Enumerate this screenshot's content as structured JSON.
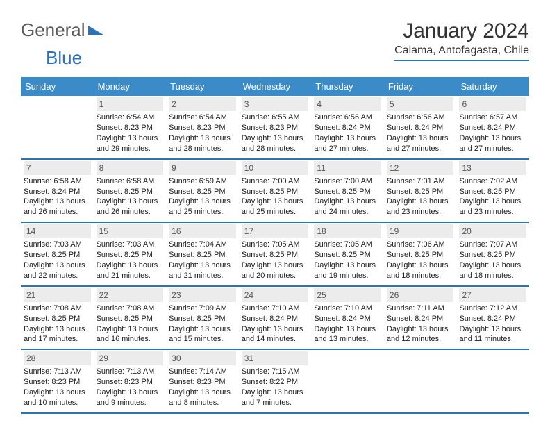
{
  "logo": {
    "text1": "General",
    "text2": "Blue",
    "tri_color": "#2a73b8",
    "text1_color": "#5a5a5a"
  },
  "title": "January 2024",
  "location": "Calama, Antofagasta, Chile",
  "header_rule_color": "#2a73b8",
  "dayhead_bg": "#3b8bc9",
  "daynum_bg": "#ececec",
  "day_names": [
    "Sunday",
    "Monday",
    "Tuesday",
    "Wednesday",
    "Thursday",
    "Friday",
    "Saturday"
  ],
  "weeks": [
    [
      {
        "n": "",
        "sr": "",
        "ss": "",
        "dl": ""
      },
      {
        "n": "1",
        "sr": "Sunrise: 6:54 AM",
        "ss": "Sunset: 8:23 PM",
        "dl": "Daylight: 13 hours and 29 minutes."
      },
      {
        "n": "2",
        "sr": "Sunrise: 6:54 AM",
        "ss": "Sunset: 8:23 PM",
        "dl": "Daylight: 13 hours and 28 minutes."
      },
      {
        "n": "3",
        "sr": "Sunrise: 6:55 AM",
        "ss": "Sunset: 8:23 PM",
        "dl": "Daylight: 13 hours and 28 minutes."
      },
      {
        "n": "4",
        "sr": "Sunrise: 6:56 AM",
        "ss": "Sunset: 8:24 PM",
        "dl": "Daylight: 13 hours and 27 minutes."
      },
      {
        "n": "5",
        "sr": "Sunrise: 6:56 AM",
        "ss": "Sunset: 8:24 PM",
        "dl": "Daylight: 13 hours and 27 minutes."
      },
      {
        "n": "6",
        "sr": "Sunrise: 6:57 AM",
        "ss": "Sunset: 8:24 PM",
        "dl": "Daylight: 13 hours and 27 minutes."
      }
    ],
    [
      {
        "n": "7",
        "sr": "Sunrise: 6:58 AM",
        "ss": "Sunset: 8:24 PM",
        "dl": "Daylight: 13 hours and 26 minutes."
      },
      {
        "n": "8",
        "sr": "Sunrise: 6:58 AM",
        "ss": "Sunset: 8:25 PM",
        "dl": "Daylight: 13 hours and 26 minutes."
      },
      {
        "n": "9",
        "sr": "Sunrise: 6:59 AM",
        "ss": "Sunset: 8:25 PM",
        "dl": "Daylight: 13 hours and 25 minutes."
      },
      {
        "n": "10",
        "sr": "Sunrise: 7:00 AM",
        "ss": "Sunset: 8:25 PM",
        "dl": "Daylight: 13 hours and 25 minutes."
      },
      {
        "n": "11",
        "sr": "Sunrise: 7:00 AM",
        "ss": "Sunset: 8:25 PM",
        "dl": "Daylight: 13 hours and 24 minutes."
      },
      {
        "n": "12",
        "sr": "Sunrise: 7:01 AM",
        "ss": "Sunset: 8:25 PM",
        "dl": "Daylight: 13 hours and 23 minutes."
      },
      {
        "n": "13",
        "sr": "Sunrise: 7:02 AM",
        "ss": "Sunset: 8:25 PM",
        "dl": "Daylight: 13 hours and 23 minutes."
      }
    ],
    [
      {
        "n": "14",
        "sr": "Sunrise: 7:03 AM",
        "ss": "Sunset: 8:25 PM",
        "dl": "Daylight: 13 hours and 22 minutes."
      },
      {
        "n": "15",
        "sr": "Sunrise: 7:03 AM",
        "ss": "Sunset: 8:25 PM",
        "dl": "Daylight: 13 hours and 21 minutes."
      },
      {
        "n": "16",
        "sr": "Sunrise: 7:04 AM",
        "ss": "Sunset: 8:25 PM",
        "dl": "Daylight: 13 hours and 21 minutes."
      },
      {
        "n": "17",
        "sr": "Sunrise: 7:05 AM",
        "ss": "Sunset: 8:25 PM",
        "dl": "Daylight: 13 hours and 20 minutes."
      },
      {
        "n": "18",
        "sr": "Sunrise: 7:05 AM",
        "ss": "Sunset: 8:25 PM",
        "dl": "Daylight: 13 hours and 19 minutes."
      },
      {
        "n": "19",
        "sr": "Sunrise: 7:06 AM",
        "ss": "Sunset: 8:25 PM",
        "dl": "Daylight: 13 hours and 18 minutes."
      },
      {
        "n": "20",
        "sr": "Sunrise: 7:07 AM",
        "ss": "Sunset: 8:25 PM",
        "dl": "Daylight: 13 hours and 18 minutes."
      }
    ],
    [
      {
        "n": "21",
        "sr": "Sunrise: 7:08 AM",
        "ss": "Sunset: 8:25 PM",
        "dl": "Daylight: 13 hours and 17 minutes."
      },
      {
        "n": "22",
        "sr": "Sunrise: 7:08 AM",
        "ss": "Sunset: 8:25 PM",
        "dl": "Daylight: 13 hours and 16 minutes."
      },
      {
        "n": "23",
        "sr": "Sunrise: 7:09 AM",
        "ss": "Sunset: 8:25 PM",
        "dl": "Daylight: 13 hours and 15 minutes."
      },
      {
        "n": "24",
        "sr": "Sunrise: 7:10 AM",
        "ss": "Sunset: 8:24 PM",
        "dl": "Daylight: 13 hours and 14 minutes."
      },
      {
        "n": "25",
        "sr": "Sunrise: 7:10 AM",
        "ss": "Sunset: 8:24 PM",
        "dl": "Daylight: 13 hours and 13 minutes."
      },
      {
        "n": "26",
        "sr": "Sunrise: 7:11 AM",
        "ss": "Sunset: 8:24 PM",
        "dl": "Daylight: 13 hours and 12 minutes."
      },
      {
        "n": "27",
        "sr": "Sunrise: 7:12 AM",
        "ss": "Sunset: 8:24 PM",
        "dl": "Daylight: 13 hours and 11 minutes."
      }
    ],
    [
      {
        "n": "28",
        "sr": "Sunrise: 7:13 AM",
        "ss": "Sunset: 8:23 PM",
        "dl": "Daylight: 13 hours and 10 minutes."
      },
      {
        "n": "29",
        "sr": "Sunrise: 7:13 AM",
        "ss": "Sunset: 8:23 PM",
        "dl": "Daylight: 13 hours and 9 minutes."
      },
      {
        "n": "30",
        "sr": "Sunrise: 7:14 AM",
        "ss": "Sunset: 8:23 PM",
        "dl": "Daylight: 13 hours and 8 minutes."
      },
      {
        "n": "31",
        "sr": "Sunrise: 7:15 AM",
        "ss": "Sunset: 8:22 PM",
        "dl": "Daylight: 13 hours and 7 minutes."
      },
      {
        "n": "",
        "sr": "",
        "ss": "",
        "dl": ""
      },
      {
        "n": "",
        "sr": "",
        "ss": "",
        "dl": ""
      },
      {
        "n": "",
        "sr": "",
        "ss": "",
        "dl": ""
      }
    ]
  ]
}
